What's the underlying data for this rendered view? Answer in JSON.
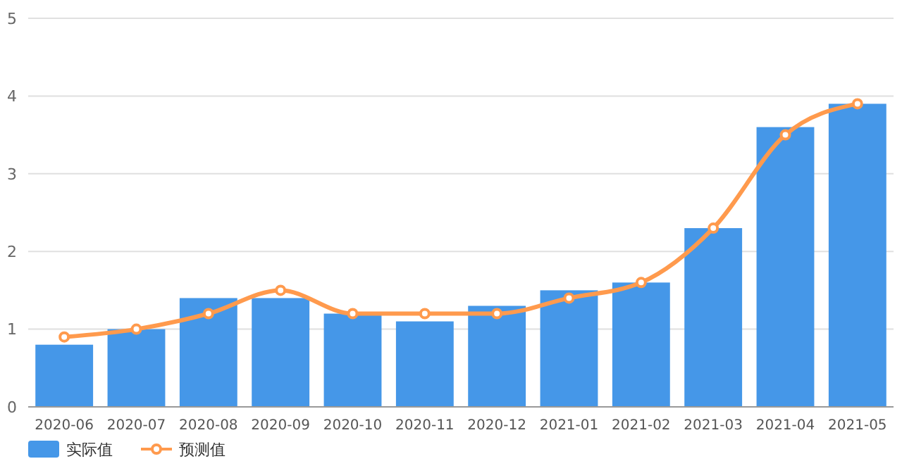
{
  "chart_data": {
    "type": "bar",
    "categories": [
      "2020-06",
      "2020-07",
      "2020-08",
      "2020-09",
      "2020-10",
      "2020-11",
      "2020-12",
      "2021-01",
      "2021-02",
      "2021-03",
      "2021-04",
      "2021-05"
    ],
    "series": [
      {
        "name": "实际值",
        "color": "#4597e8",
        "values": [
          0.8,
          1.0,
          1.4,
          1.4,
          1.2,
          1.1,
          1.3,
          1.5,
          1.6,
          2.3,
          3.6,
          3.9
        ]
      },
      {
        "name": "预测值",
        "type": "line",
        "color": "#ff9a4d",
        "values": [
          0.9,
          1.0,
          1.2,
          1.5,
          1.2,
          1.2,
          1.2,
          1.4,
          1.6,
          2.3,
          3.5,
          3.9
        ]
      }
    ],
    "ylim": [
      0,
      5
    ],
    "yticks": [
      0,
      1,
      2,
      3,
      4,
      5
    ],
    "grid": "y",
    "legend": "bottom left",
    "marker": "circle"
  }
}
